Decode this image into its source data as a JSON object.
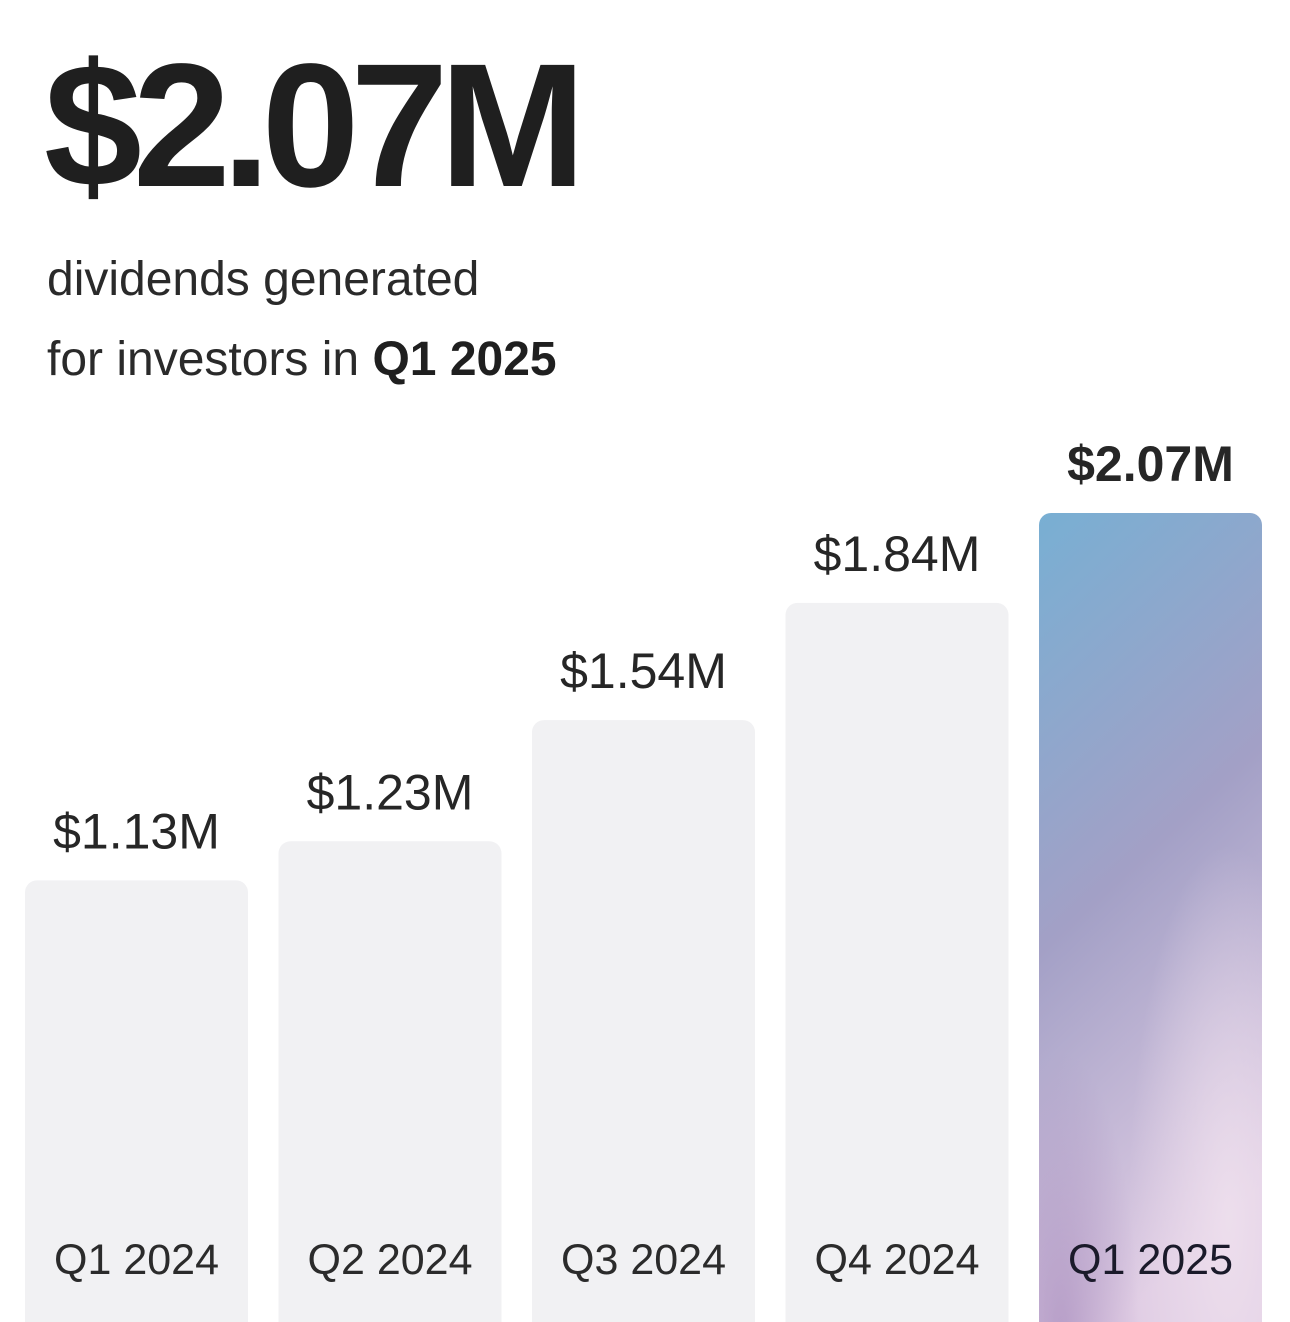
{
  "headline": "$2.07M",
  "subtitle": {
    "line1": "dividends generated",
    "line2_prefix": "for investors in ",
    "line2_bold": "Q1 2025"
  },
  "colors": {
    "bar_default": "#f1f1f3",
    "bar_highlight_top": "#78afd3",
    "bar_highlight_mid": "#a3a0c6",
    "bar_highlight_bottom": "#e0cde4",
    "text": "#1f1f1f"
  },
  "chart_data": {
    "type": "bar",
    "categories": [
      "Q1 2024",
      "Q2 2024",
      "Q3 2024",
      "Q4 2024",
      "Q1 2025"
    ],
    "values": [
      1.13,
      1.23,
      1.54,
      1.84,
      2.07
    ],
    "value_labels": [
      "$1.13M",
      "$1.23M",
      "$1.54M",
      "$1.84M",
      "$2.07M"
    ],
    "highlight_index": 4,
    "title": "",
    "xlabel": "",
    "ylabel": "",
    "grid": false,
    "legend": "none"
  }
}
